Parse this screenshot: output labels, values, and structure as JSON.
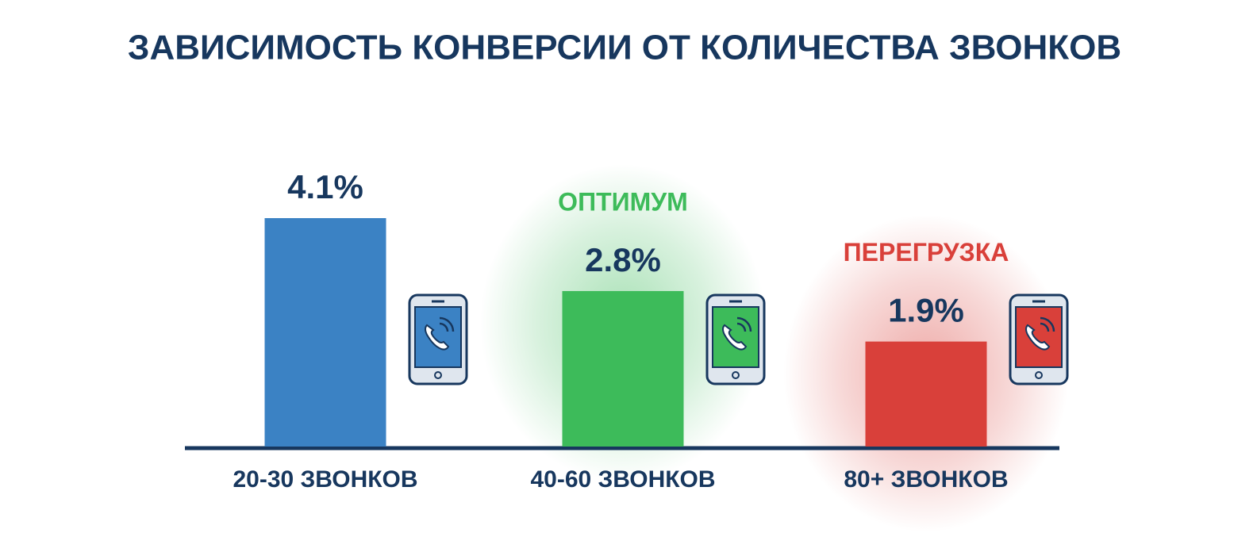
{
  "chart_data": {
    "type": "bar",
    "title": "ЗАВИСИМОСТЬ КОНВЕРСИИ ОТ КОЛИЧЕСТВА ЗВОНКОВ",
    "categories": [
      "20-30 ЗВОНКОВ",
      "40-60 ЗВОНКОВ",
      "80+ ЗВОНКОВ"
    ],
    "values": [
      4.1,
      2.8,
      1.9
    ],
    "value_labels": [
      "4.1%",
      "2.8%",
      "1.9%"
    ],
    "colors": [
      "#3b82c4",
      "#3dbb5a",
      "#d9403a"
    ],
    "annotations": [
      null,
      "ОПТИМУМ",
      "ПЕРЕГРУЗКА"
    ]
  }
}
